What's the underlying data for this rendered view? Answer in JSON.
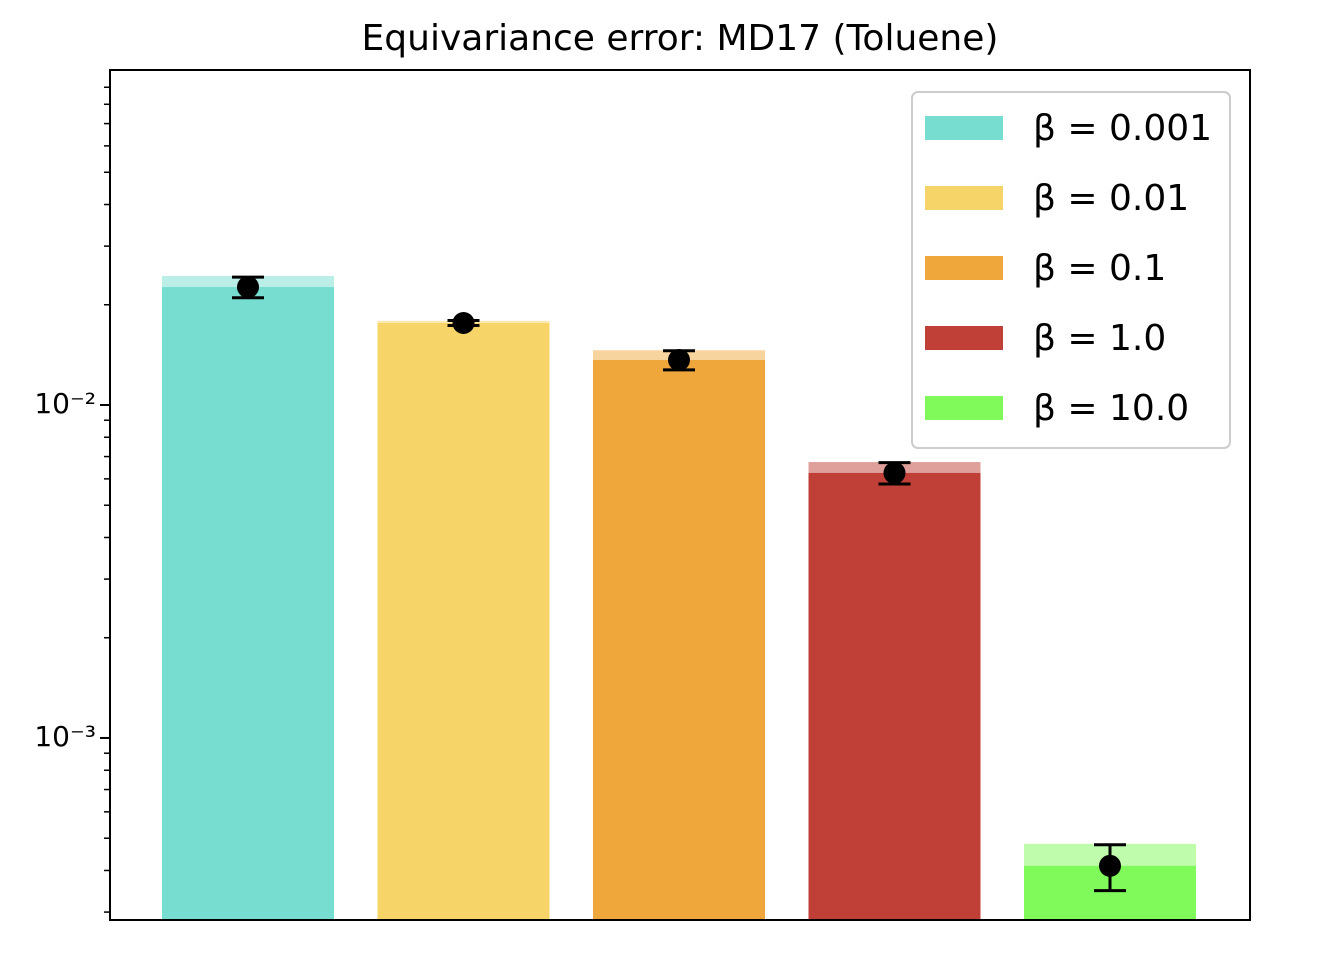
{
  "chart_data": {
    "type": "bar",
    "title": "Equivariance error: MD17 (Toluene)",
    "log_y": true,
    "ylim": [
      0.000284,
      0.1014
    ],
    "yticks": [
      {
        "value": 0.001,
        "label": "10⁻³"
      },
      {
        "value": 0.01,
        "label": "10⁻²"
      }
    ],
    "yminor": [
      0.0003,
      0.0004,
      0.0005,
      0.0006,
      0.0007,
      0.0008,
      0.0009,
      0.002,
      0.003,
      0.004,
      0.005,
      0.006,
      0.007,
      0.008,
      0.009,
      0.02,
      0.03,
      0.04,
      0.05,
      0.06,
      0.07,
      0.08,
      0.09
    ],
    "legend": "upper right",
    "series": [
      {
        "name": "β = 0.001",
        "color": "#76ddd0",
        "values": [
          0.0226
        ],
        "errors": [
          0.0016
        ],
        "upper": [
          0.0244
        ]
      },
      {
        "name": "β = 0.01",
        "color": "#f7d468",
        "values": [
          0.01763
        ],
        "errors": [
          0.0003
        ],
        "upper": [
          0.0179
        ]
      },
      {
        "name": "β = 0.1",
        "color": "#efa73b",
        "values": [
          0.01365
        ],
        "errors": [
          0.0009
        ],
        "upper": [
          0.0146
        ]
      },
      {
        "name": "β = 1.0",
        "color": "#c03f37",
        "values": [
          0.00625
        ],
        "errors": [
          0.00046
        ],
        "upper": [
          0.00674
        ]
      },
      {
        "name": "β = 10.0",
        "color": "#80f95a",
        "values": [
          0.000413
        ],
        "errors": [
          6.5e-05
        ],
        "upper": [
          0.000481
        ]
      }
    ]
  }
}
